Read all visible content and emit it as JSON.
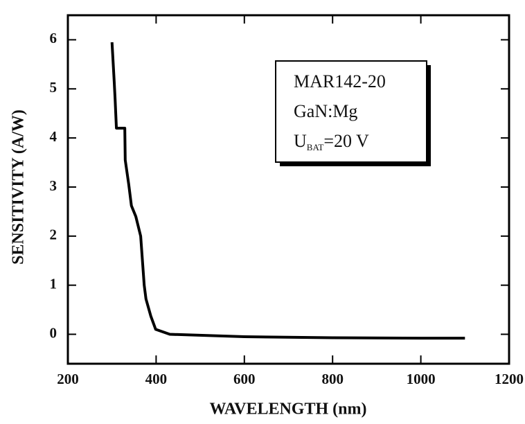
{
  "chart_data": {
    "type": "line",
    "x": [
      300,
      305,
      307,
      310,
      329,
      330,
      338,
      344,
      354,
      365,
      373,
      377,
      388,
      399,
      431,
      600,
      800,
      1000,
      1100
    ],
    "values": [
      5.95,
      5.15,
      4.8,
      4.2,
      4.2,
      3.55,
      3.05,
      2.62,
      2.4,
      2.0,
      1.0,
      0.72,
      0.37,
      0.1,
      0.0,
      -0.05,
      -0.07,
      -0.08,
      -0.08
    ],
    "color": "#000000",
    "xlabel": "WAVELENGTH (nm)",
    "ylabel": "SENSITIVITY (A/W)",
    "xlim": [
      200,
      1200
    ],
    "ylim": [
      -0.6,
      6.5
    ],
    "xticks": [
      200,
      400,
      600,
      800,
      1000,
      1200
    ],
    "yticks": [
      0,
      1,
      2,
      3,
      4,
      5,
      6
    ],
    "annotation": {
      "lines": [
        "MAR142-20",
        "GaN:Mg"
      ],
      "bias": {
        "symbol": "U",
        "subscript": "BAT",
        "text": "=20 V"
      }
    }
  }
}
